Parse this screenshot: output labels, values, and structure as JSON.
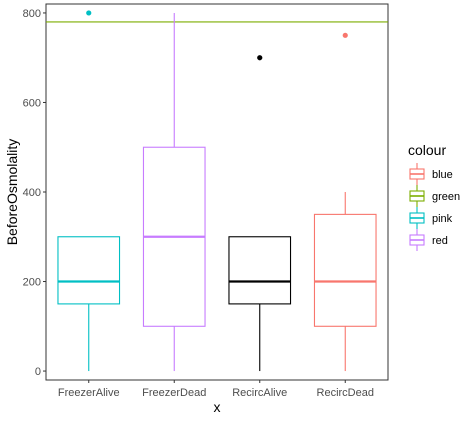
{
  "chart_data": {
    "type": "boxplot",
    "xlabel": "x",
    "ylabel": "BeforeOsmolality",
    "ylim": [
      -20,
      820
    ],
    "yticks": [
      0,
      200,
      400,
      600,
      800
    ],
    "categories": [
      "FreezerAlive",
      "FreezerDead",
      "RecircAlive",
      "RecircDead"
    ],
    "boxes": [
      {
        "category": "FreezerAlive",
        "color_group": "pink",
        "color": "#00BFC4",
        "min": 0,
        "q1": 150,
        "median": 200,
        "q3": 300,
        "max": 300,
        "outliers": [
          800
        ]
      },
      {
        "category": "FreezerDead",
        "color_group": "red",
        "color": "#C77CFF",
        "min": 0,
        "q1": 100,
        "median": 300,
        "q3": 500,
        "max": 800,
        "outliers": []
      },
      {
        "category": "RecircAlive",
        "color_group": "",
        "color": "#000000",
        "min": 0,
        "q1": 150,
        "median": 200,
        "q3": 300,
        "max": 300,
        "outliers": [
          700
        ]
      },
      {
        "category": "RecircDead",
        "color_group": "blue",
        "color": "#F8766D",
        "min": 0,
        "q1": 100,
        "median": 200,
        "q3": 350,
        "max": 400,
        "outliers": [
          750
        ]
      }
    ],
    "hline": {
      "y": 780,
      "color_group": "green",
      "color": "#7CAE00"
    },
    "legend": {
      "title": "colour",
      "position": "right",
      "items": [
        {
          "label": "blue",
          "color": "#F8766D"
        },
        {
          "label": "green",
          "color": "#7CAE00"
        },
        {
          "label": "pink",
          "color": "#00BFC4"
        },
        {
          "label": "red",
          "color": "#C77CFF"
        }
      ]
    },
    "grid": false
  }
}
